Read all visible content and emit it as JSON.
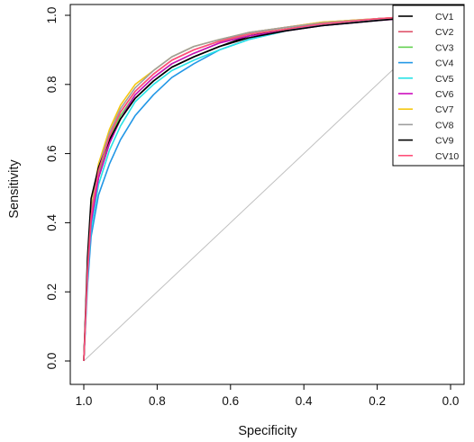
{
  "chart_data": {
    "type": "line",
    "title": "",
    "xlabel": "Specificity",
    "ylabel": "Sensitivity",
    "x_axis": "reversed",
    "xlim": [
      1.0,
      0.0
    ],
    "ylim": [
      0.0,
      1.0
    ],
    "x_ticks": [
      "1.0",
      "0.8",
      "0.6",
      "0.4",
      "0.2",
      "0.0"
    ],
    "y_ticks": [
      "0.0",
      "0.2",
      "0.4",
      "0.6",
      "0.8",
      "1.0"
    ],
    "grid": false,
    "legend_position": "top-right",
    "reference_line": {
      "from": [
        1.0,
        0.0
      ],
      "to": [
        0.0,
        1.0
      ],
      "color": "#c0c0c0"
    },
    "series": [
      {
        "name": "CV1",
        "color": "#000000",
        "x": [
          1.0,
          0.99,
          0.98,
          0.96,
          0.93,
          0.9,
          0.86,
          0.81,
          0.76,
          0.7,
          0.63,
          0.55,
          0.45,
          0.35,
          0.2,
          0.1,
          0.0
        ],
        "y": [
          0.0,
          0.25,
          0.4,
          0.53,
          0.63,
          0.7,
          0.76,
          0.81,
          0.85,
          0.88,
          0.91,
          0.94,
          0.96,
          0.975,
          0.99,
          0.995,
          1.0
        ]
      },
      {
        "name": "CV2",
        "color": "#df536b",
        "x": [
          1.0,
          0.99,
          0.98,
          0.96,
          0.93,
          0.9,
          0.86,
          0.81,
          0.76,
          0.7,
          0.63,
          0.55,
          0.45,
          0.35,
          0.2,
          0.1,
          0.0
        ],
        "y": [
          0.0,
          0.27,
          0.42,
          0.55,
          0.65,
          0.72,
          0.78,
          0.83,
          0.87,
          0.9,
          0.925,
          0.95,
          0.965,
          0.98,
          0.99,
          0.997,
          1.0
        ]
      },
      {
        "name": "CV3",
        "color": "#61d04f",
        "x": [
          1.0,
          0.99,
          0.98,
          0.96,
          0.93,
          0.9,
          0.86,
          0.81,
          0.76,
          0.7,
          0.63,
          0.55,
          0.45,
          0.35,
          0.2,
          0.1,
          0.0
        ],
        "y": [
          0.0,
          0.26,
          0.41,
          0.54,
          0.64,
          0.71,
          0.77,
          0.82,
          0.86,
          0.89,
          0.92,
          0.945,
          0.96,
          0.975,
          0.99,
          0.996,
          1.0
        ]
      },
      {
        "name": "CV4",
        "color": "#2297e6",
        "x": [
          1.0,
          0.99,
          0.98,
          0.96,
          0.93,
          0.9,
          0.86,
          0.81,
          0.76,
          0.7,
          0.63,
          0.55,
          0.45,
          0.35,
          0.2,
          0.1,
          0.0
        ],
        "y": [
          0.0,
          0.22,
          0.36,
          0.48,
          0.57,
          0.64,
          0.71,
          0.77,
          0.82,
          0.86,
          0.9,
          0.93,
          0.955,
          0.975,
          0.99,
          0.995,
          1.0
        ]
      },
      {
        "name": "CV5",
        "color": "#28e2e5",
        "x": [
          1.0,
          0.99,
          0.98,
          0.96,
          0.93,
          0.9,
          0.86,
          0.81,
          0.76,
          0.7,
          0.63,
          0.55,
          0.45,
          0.35,
          0.2,
          0.1,
          0.0
        ],
        "y": [
          0.0,
          0.24,
          0.38,
          0.51,
          0.61,
          0.68,
          0.75,
          0.8,
          0.84,
          0.87,
          0.9,
          0.93,
          0.955,
          0.97,
          0.985,
          0.995,
          1.0
        ]
      },
      {
        "name": "CV6",
        "color": "#cd0bbc",
        "x": [
          1.0,
          0.99,
          0.98,
          0.96,
          0.93,
          0.9,
          0.86,
          0.81,
          0.76,
          0.7,
          0.63,
          0.55,
          0.45,
          0.35,
          0.2,
          0.1,
          0.0
        ],
        "y": [
          0.0,
          0.25,
          0.4,
          0.53,
          0.63,
          0.7,
          0.77,
          0.82,
          0.86,
          0.89,
          0.92,
          0.94,
          0.955,
          0.97,
          0.985,
          0.993,
          1.0
        ]
      },
      {
        "name": "CV7",
        "color": "#f5c710",
        "x": [
          1.0,
          0.99,
          0.98,
          0.96,
          0.93,
          0.9,
          0.86,
          0.81,
          0.76,
          0.7,
          0.63,
          0.55,
          0.45,
          0.35,
          0.2,
          0.1,
          0.0
        ],
        "y": [
          0.0,
          0.28,
          0.44,
          0.57,
          0.67,
          0.74,
          0.8,
          0.84,
          0.88,
          0.91,
          0.93,
          0.95,
          0.965,
          0.98,
          0.99,
          0.997,
          1.0
        ]
      },
      {
        "name": "CV8",
        "color": "#9e9e9e",
        "x": [
          1.0,
          0.99,
          0.98,
          0.96,
          0.93,
          0.9,
          0.86,
          0.81,
          0.76,
          0.7,
          0.63,
          0.55,
          0.45,
          0.35,
          0.2,
          0.1,
          0.0
        ],
        "y": [
          0.0,
          0.27,
          0.43,
          0.56,
          0.66,
          0.73,
          0.79,
          0.84,
          0.88,
          0.91,
          0.93,
          0.95,
          0.965,
          0.978,
          0.99,
          0.996,
          1.0
        ]
      },
      {
        "name": "CV9",
        "color": "#000000",
        "x": [
          1.0,
          0.99,
          0.98,
          0.96,
          0.93,
          0.9,
          0.86,
          0.81,
          0.76,
          0.7,
          0.63,
          0.55,
          0.45,
          0.35,
          0.2,
          0.1,
          0.0
        ],
        "y": [
          0.0,
          0.3,
          0.47,
          0.56,
          0.64,
          0.7,
          0.76,
          0.81,
          0.85,
          0.88,
          0.91,
          0.935,
          0.955,
          0.97,
          0.985,
          0.994,
          1.0
        ]
      },
      {
        "name": "CV10",
        "color": "#ff4f7a",
        "x": [
          1.0,
          0.99,
          0.98,
          0.96,
          0.93,
          0.9,
          0.86,
          0.81,
          0.76,
          0.7,
          0.63,
          0.55,
          0.45,
          0.35,
          0.2,
          0.1,
          0.0
        ],
        "y": [
          0.0,
          0.26,
          0.42,
          0.55,
          0.65,
          0.72,
          0.78,
          0.83,
          0.87,
          0.9,
          0.925,
          0.945,
          0.96,
          0.975,
          0.99,
          0.997,
          1.0
        ]
      }
    ]
  }
}
